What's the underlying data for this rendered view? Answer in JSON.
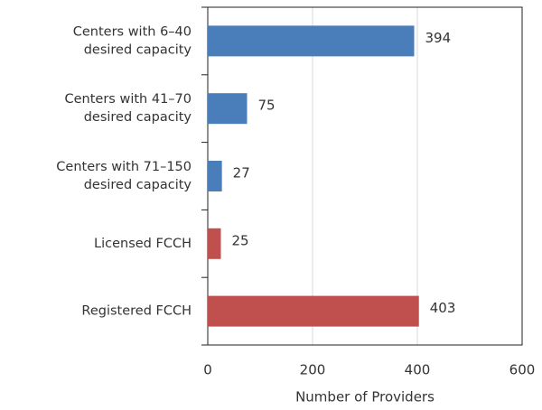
{
  "chart_data": {
    "type": "barh",
    "categories": [
      "Centers with 6–40\ndesired capacity",
      "Centers with 41–70\ndesired capacity",
      "Centers with 71–150\ndesired capacity",
      "Licensed FCCH",
      "Registered FCCH"
    ],
    "values": [
      394,
      75,
      27,
      25,
      403
    ],
    "colors": [
      "#4a7ebb",
      "#4a7ebb",
      "#4a7ebb",
      "#c0504d",
      "#c0504d"
    ],
    "xlabel": "Number of Providers",
    "xlim": [
      0,
      600
    ],
    "xticks": [
      0,
      200,
      400,
      600
    ],
    "grid": true
  }
}
